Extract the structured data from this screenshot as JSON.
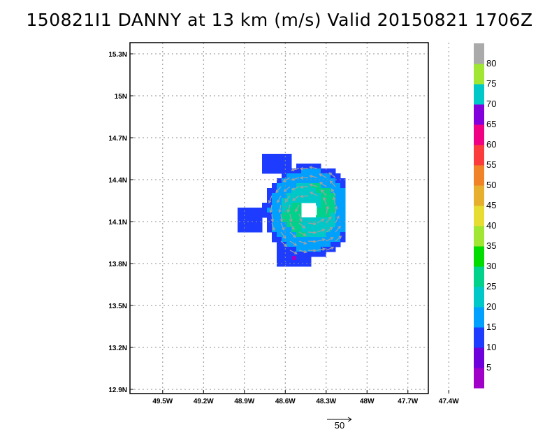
{
  "chart_data": {
    "type": "heatmap",
    "title": "150821I1 DANNY at 13 km (m/s) Valid 20150821 1706Z",
    "x_ticks": [
      "49.5W",
      "49.2W",
      "48.9W",
      "48.6W",
      "48.3W",
      "48W",
      "47.7W",
      "47.4W"
    ],
    "x_tick_values": [
      -49.5,
      -49.2,
      -48.9,
      -48.6,
      -48.3,
      -48.0,
      -47.7,
      -47.4
    ],
    "y_ticks": [
      "12.9N",
      "13.2N",
      "13.5N",
      "13.8N",
      "14.1N",
      "14.4N",
      "14.7N",
      "15N",
      "15.3N"
    ],
    "y_tick_values": [
      12.9,
      13.2,
      13.5,
      13.8,
      14.1,
      14.4,
      14.7,
      15.0,
      15.3
    ],
    "xlim": [
      -49.74,
      -47.55
    ],
    "ylim": [
      12.87,
      15.38
    ],
    "grid": true,
    "colorbar": {
      "labels": [
        "5",
        "10",
        "15",
        "20",
        "25",
        "30",
        "35",
        "40",
        "45",
        "50",
        "55",
        "60",
        "65",
        "70",
        "75",
        "80"
      ],
      "colors": [
        "#a000c8",
        "#6e00dc",
        "#1e3cff",
        "#00a0ff",
        "#00c8c8",
        "#00d28c",
        "#00dc00",
        "#a0e632",
        "#e6dc32",
        "#e6af2d",
        "#f08228",
        "#fa3c3c",
        "#f00082",
        "#8200dc",
        "#00c8c8",
        "#a0e632",
        "#aaaaaa"
      ]
    },
    "storm_center": {
      "lon": -48.42,
      "lat": 14.18
    },
    "vector_key": {
      "label": "50"
    }
  }
}
